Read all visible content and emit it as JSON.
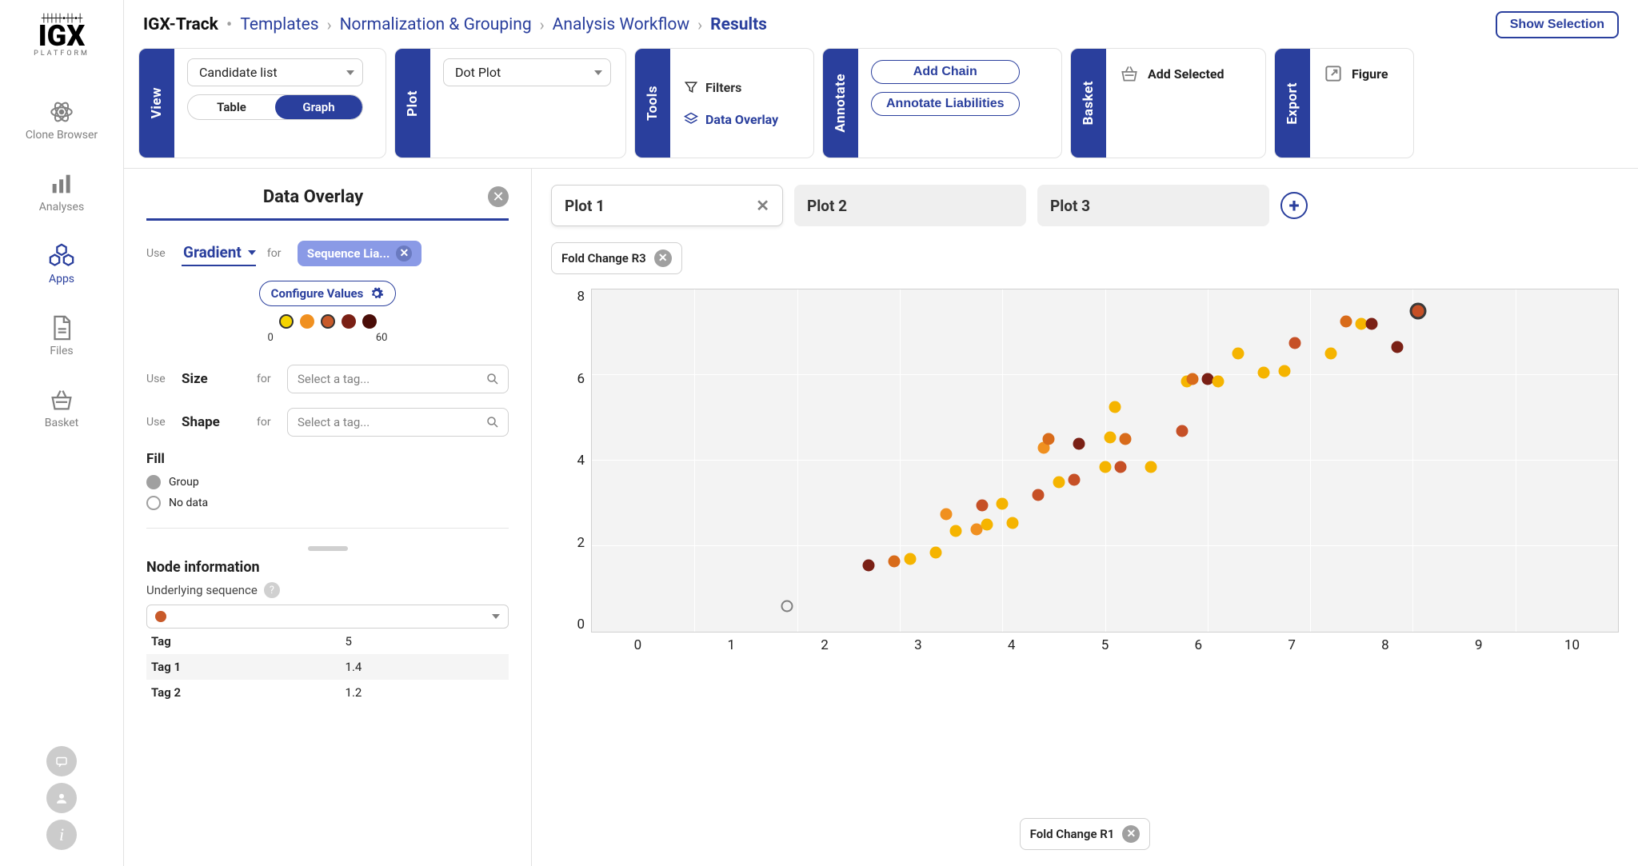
{
  "breadcrumb": {
    "app": "IGX-Track",
    "items": [
      "Templates",
      "Normalization & Grouping",
      "Analysis Workflow",
      "Results"
    ]
  },
  "topRight": {
    "showSelection": "Show Selection"
  },
  "rail": {
    "items": [
      {
        "label": "Clone Browser"
      },
      {
        "label": "Analyses"
      },
      {
        "label": "Apps"
      },
      {
        "label": "Files"
      },
      {
        "label": "Basket"
      }
    ]
  },
  "ribbon": {
    "view": {
      "tab": "View",
      "select": "Candidate list",
      "seg": {
        "a": "Table",
        "b": "Graph"
      }
    },
    "plot": {
      "tab": "Plot",
      "select": "Dot Plot"
    },
    "tools": {
      "tab": "Tools",
      "filters": "Filters",
      "overlay": "Data Overlay"
    },
    "annotate": {
      "tab": "Annotate",
      "addChain": "Add Chain",
      "annotateLiab": "Annotate Liabilities"
    },
    "basket": {
      "tab": "Basket",
      "addSelected": "Add Selected"
    },
    "export": {
      "tab": "Export",
      "figure": "Figure"
    }
  },
  "overlay": {
    "title": "Data Overlay",
    "useLabel": "Use",
    "forLabel": "for",
    "gradient": "Gradient",
    "seqTag": "Sequence Lia...",
    "configure": "Configure Values",
    "scaleMin": "0",
    "scaleMax": "60",
    "gradColors": [
      "#f5d400",
      "#f09020",
      "#c85a2a",
      "#7a2015",
      "#4a0d08"
    ],
    "size": "Size",
    "shape": "Shape",
    "selectTag": "Select a tag...",
    "fill": "Fill",
    "fillOpts": {
      "group": "Group",
      "nodata": "No data"
    },
    "nodeInfo": "Node information",
    "underlying": "Underlying sequence",
    "kv": [
      {
        "k": "Tag",
        "v": "5"
      },
      {
        "k": "Tag 1",
        "v": "1.4"
      },
      {
        "k": "Tag 2",
        "v": "1.2"
      }
    ]
  },
  "chart": {
    "tabs": [
      "Plot 1",
      "Plot 2",
      "Plot 3"
    ],
    "yChip": "Fold Change R3",
    "xChip": "Fold Change R1",
    "ylim": [
      0,
      8
    ],
    "yticks": [
      0,
      2,
      4,
      6,
      8
    ],
    "xlim": [
      0,
      10
    ],
    "xticks": [
      0,
      1,
      2,
      3,
      4,
      5,
      6,
      7,
      8,
      9,
      10
    ],
    "background": "#f3f3f3",
    "points": [
      {
        "x": 1.9,
        "y": 0.6,
        "c": "ring"
      },
      {
        "x": 2.7,
        "y": 1.55,
        "c": "#7a2015"
      },
      {
        "x": 2.95,
        "y": 1.65,
        "c": "#d86b1a"
      },
      {
        "x": 3.1,
        "y": 1.7,
        "c": "#f5b400"
      },
      {
        "x": 3.35,
        "y": 1.85,
        "c": "#f5b400"
      },
      {
        "x": 3.45,
        "y": 2.75,
        "c": "#f09020"
      },
      {
        "x": 3.55,
        "y": 2.35,
        "c": "#f5b400"
      },
      {
        "x": 3.75,
        "y": 2.4,
        "c": "#f09020"
      },
      {
        "x": 3.8,
        "y": 2.95,
        "c": "#c65026"
      },
      {
        "x": 3.85,
        "y": 2.5,
        "c": "#f5b400"
      },
      {
        "x": 4.0,
        "y": 3.0,
        "c": "#f5b400"
      },
      {
        "x": 4.1,
        "y": 2.55,
        "c": "#f5b400"
      },
      {
        "x": 4.35,
        "y": 3.2,
        "c": "#c65026"
      },
      {
        "x": 4.4,
        "y": 4.3,
        "c": "#f09020"
      },
      {
        "x": 4.45,
        "y": 4.5,
        "c": "#d86b1a"
      },
      {
        "x": 4.55,
        "y": 3.5,
        "c": "#f5b400"
      },
      {
        "x": 4.7,
        "y": 3.55,
        "c": "#c65026"
      },
      {
        "x": 4.75,
        "y": 4.4,
        "c": "#7a2015"
      },
      {
        "x": 5.0,
        "y": 3.85,
        "c": "#f5b400"
      },
      {
        "x": 5.05,
        "y": 4.55,
        "c": "#f5b400"
      },
      {
        "x": 5.1,
        "y": 5.25,
        "c": "#f5b400"
      },
      {
        "x": 5.15,
        "y": 3.85,
        "c": "#c65026"
      },
      {
        "x": 5.2,
        "y": 4.5,
        "c": "#d86b1a"
      },
      {
        "x": 5.45,
        "y": 3.85,
        "c": "#f5b400"
      },
      {
        "x": 5.75,
        "y": 4.7,
        "c": "#c65026"
      },
      {
        "x": 5.8,
        "y": 5.85,
        "c": "#f5b400"
      },
      {
        "x": 5.85,
        "y": 5.9,
        "c": "#d86b1a"
      },
      {
        "x": 6.0,
        "y": 5.9,
        "c": "#7a2015"
      },
      {
        "x": 6.1,
        "y": 5.85,
        "c": "#f5b400"
      },
      {
        "x": 6.3,
        "y": 6.5,
        "c": "#f5b400"
      },
      {
        "x": 6.55,
        "y": 6.05,
        "c": "#f5b400"
      },
      {
        "x": 6.75,
        "y": 6.1,
        "c": "#f5b400"
      },
      {
        "x": 6.85,
        "y": 6.75,
        "c": "#c65026"
      },
      {
        "x": 7.2,
        "y": 6.5,
        "c": "#f5b400"
      },
      {
        "x": 7.35,
        "y": 7.25,
        "c": "#d86b1a"
      },
      {
        "x": 7.5,
        "y": 7.2,
        "c": "#f5b400"
      },
      {
        "x": 7.6,
        "y": 7.2,
        "c": "#7a2015"
      },
      {
        "x": 7.85,
        "y": 6.65,
        "c": "#7a2015"
      },
      {
        "x": 8.05,
        "y": 7.5,
        "c": "#c65026",
        "sel": true
      }
    ]
  }
}
